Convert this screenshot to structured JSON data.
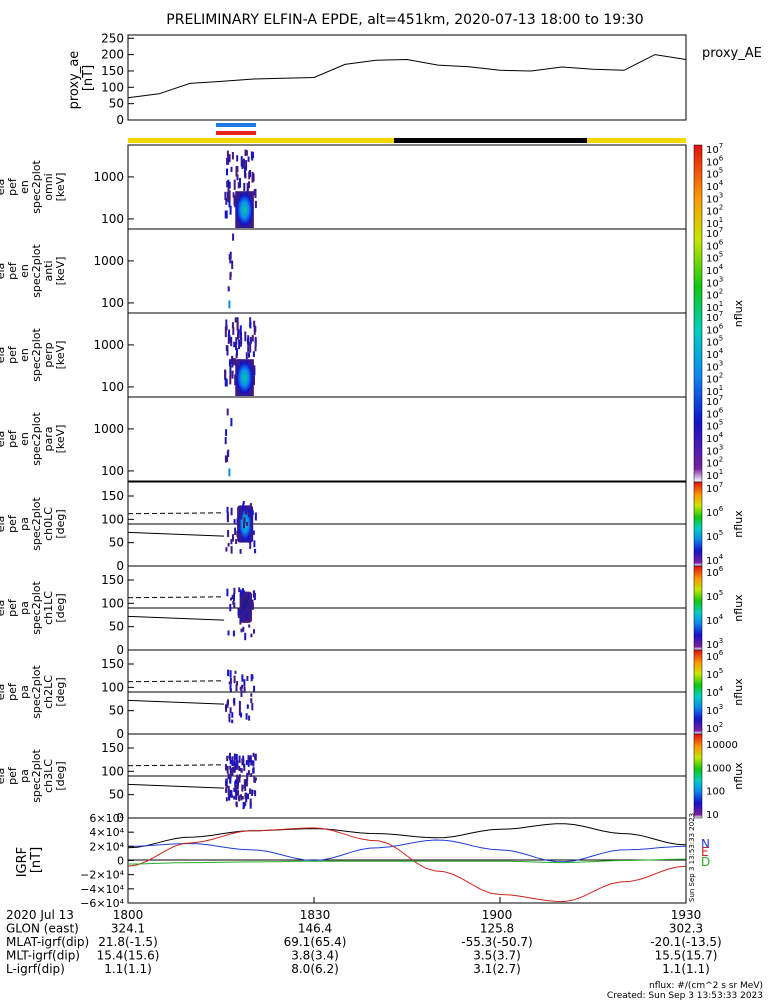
{
  "title": "PRELIMINARY ELFIN-A EPDE, alt=451km, 2020-07-13 18:00 to 19:30",
  "colors": {
    "phase_bar_yellow": "#f5d800",
    "phase_bar_black": "#000000",
    "marker_blue": "#1e7ae6",
    "marker_red": "#e8231c",
    "grf_total": "#000000",
    "grf_N": "#1f3bd8",
    "grf_E": "#d0231a",
    "grf_D": "#22b022"
  },
  "colorbar_labels": {
    "flux": [
      "10",
      "10",
      "10",
      "10",
      "10",
      "10",
      "10"
    ],
    "flux_exp": [
      "1",
      "2",
      "3",
      "4",
      "5",
      "6",
      "7"
    ],
    "ch3": [
      "10000",
      "1000",
      "100",
      "10"
    ],
    "unit": "nflux"
  },
  "chart_data": [
    {
      "type": "line",
      "panel": "proxy_ae",
      "ylabel": "proxy_ae [nT]",
      "series_label": "proxy_AE",
      "ylim": [
        0,
        260
      ],
      "yticks": [
        "250",
        "200",
        "150",
        "100",
        "50",
        "0"
      ],
      "x_minutes": [
        0,
        5,
        10,
        15,
        20,
        25,
        30,
        35,
        40,
        45,
        50,
        55,
        60,
        65,
        70,
        75,
        80,
        85,
        90
      ],
      "values": [
        68,
        80,
        112,
        118,
        125,
        128,
        130,
        170,
        183,
        185,
        168,
        163,
        152,
        150,
        162,
        155,
        152,
        200,
        185
      ]
    },
    {
      "type": "heatmap",
      "panel": "ela pef en spec2plot omni [keV]",
      "ylabel_lines": [
        "ela",
        "pef",
        "en",
        "spec2plot",
        "omni",
        "[keV]"
      ],
      "yticks": [
        "1000",
        "100"
      ],
      "yscale": "log",
      "colorbar": "nflux 1e1 - 1e7",
      "active_interval_minutes": [
        15.5,
        20.5
      ]
    },
    {
      "type": "heatmap",
      "panel": "ela pef en spec2plot anti [keV]",
      "ylabel_lines": [
        "ela",
        "pef",
        "en",
        "spec2plot",
        "anti",
        "[keV]"
      ],
      "yticks": [
        "1000",
        "100"
      ],
      "yscale": "log",
      "colorbar": "nflux 1e1 - 1e7",
      "active_interval_minutes": [
        15.5,
        17.0
      ]
    },
    {
      "type": "heatmap",
      "panel": "ela pef en spec2plot perp [keV]",
      "ylabel_lines": [
        "ela",
        "pef",
        "en",
        "spec2plot",
        "perp",
        "[keV]"
      ],
      "yticks": [
        "1000",
        "100"
      ],
      "yscale": "log",
      "colorbar": "nflux 1e1 - 1e7",
      "active_interval_minutes": [
        15.5,
        20.5
      ]
    },
    {
      "type": "heatmap",
      "panel": "ela pef en spec2plot para [keV]",
      "ylabel_lines": [
        "ela",
        "pef",
        "en",
        "spec2plot",
        "para",
        "[keV]"
      ],
      "yticks": [
        "1000",
        "100"
      ],
      "yscale": "log",
      "colorbar": "nflux 1e1 - 1e7",
      "active_interval_minutes": [
        15.5,
        17.0
      ]
    },
    {
      "type": "heatmap",
      "panel": "ela pef pa spec2plot ch0LC [deg]",
      "ylabel_lines": [
        "ela",
        "pef",
        "pa",
        "spec2plot",
        "ch0LC",
        "[deg]"
      ],
      "yticks": [
        "150",
        "100",
        "50",
        "0"
      ],
      "ylim": [
        0,
        180
      ],
      "colorbar": "nflux 1e4 - 1e7"
    },
    {
      "type": "heatmap",
      "panel": "ela pef pa spec2plot ch1LC [deg]",
      "ylabel_lines": [
        "ela",
        "pef",
        "pa",
        "spec2plot",
        "ch1LC",
        "[deg]"
      ],
      "yticks": [
        "150",
        "100",
        "50",
        "0"
      ],
      "ylim": [
        0,
        180
      ],
      "colorbar": "nflux 1e3 - 1e6"
    },
    {
      "type": "heatmap",
      "panel": "ela pef pa spec2plot ch2LC [deg]",
      "ylabel_lines": [
        "ela",
        "pef",
        "pa",
        "spec2plot",
        "ch2LC",
        "[deg]"
      ],
      "yticks": [
        "150",
        "100",
        "50",
        "0"
      ],
      "ylim": [
        0,
        180
      ],
      "colorbar": "nflux 1e2 - 1e6"
    },
    {
      "type": "heatmap",
      "panel": "ela pef pa spec2plot ch3LC [deg]",
      "ylabel_lines": [
        "ela",
        "pef",
        "pa",
        "spec2plot",
        "ch3LC",
        "[deg]"
      ],
      "yticks": [
        "150",
        "100",
        "50",
        "0"
      ],
      "ylim": [
        0,
        180
      ],
      "colorbar": "nflux 10 - 10000"
    },
    {
      "type": "line",
      "panel": "IGRF [nT]",
      "ylabel": "IGRF [nT]",
      "yticks": [
        "6×10⁴",
        "4×10⁴",
        "2×10⁴",
        "0",
        "−2×10⁴",
        "−4×10⁴",
        "−6×10⁴"
      ],
      "ylim": [
        -60000,
        60000
      ],
      "legend": [
        "N",
        "E",
        "D"
      ],
      "x_minutes": [
        0,
        10,
        20,
        30,
        40,
        50,
        60,
        70,
        80,
        90
      ],
      "series": [
        {
          "name": "total",
          "values": [
            18000,
            33000,
            42000,
            45000,
            38000,
            32000,
            44000,
            52000,
            38000,
            22000
          ]
        },
        {
          "name": "N",
          "values": [
            20000,
            24000,
            15000,
            0,
            18000,
            29000,
            15000,
            -2000,
            15000,
            20000
          ]
        },
        {
          "name": "E",
          "values": [
            -8000,
            25000,
            42000,
            46000,
            28000,
            -15000,
            -48000,
            -58000,
            -30000,
            -8000
          ]
        },
        {
          "name": "D",
          "values": [
            -5000,
            -3000,
            -2000,
            -1000,
            -1000,
            -1000,
            -1000,
            -3000,
            0,
            2000
          ]
        }
      ]
    }
  ],
  "x_axis": {
    "rows": [
      {
        "label": "2020 Jul 13",
        "values": [
          "1800",
          "1830",
          "1900",
          "1930"
        ]
      },
      {
        "label": "GLON (east)",
        "values": [
          "324.1",
          "146.4",
          "125.8",
          "302.3"
        ]
      },
      {
        "label": "MLAT-igrf(dip)",
        "values": [
          "21.8(-1.5)",
          "69.1(65.4)",
          "-55.3(-50.7)",
          "-20.1(-13.5)"
        ]
      },
      {
        "label": "MLT-igrf(dip)",
        "values": [
          "15.4(15.6)",
          "3.8(3.4)",
          "3.5(3.7)",
          "15.5(15.7)"
        ]
      },
      {
        "label": "L-igrf(dip)",
        "values": [
          "1.1(1.1)",
          "8.0(6.2)",
          "3.1(2.7)",
          "1.1(1.1)"
        ]
      }
    ]
  },
  "footer": {
    "units": "nflux: #/(cm^2 s sr MeV)",
    "created": "Created: Sun Sep  3 13:53:33 2023",
    "vertical_stamp": "Sun Sep  3 13:53:33 2023"
  }
}
